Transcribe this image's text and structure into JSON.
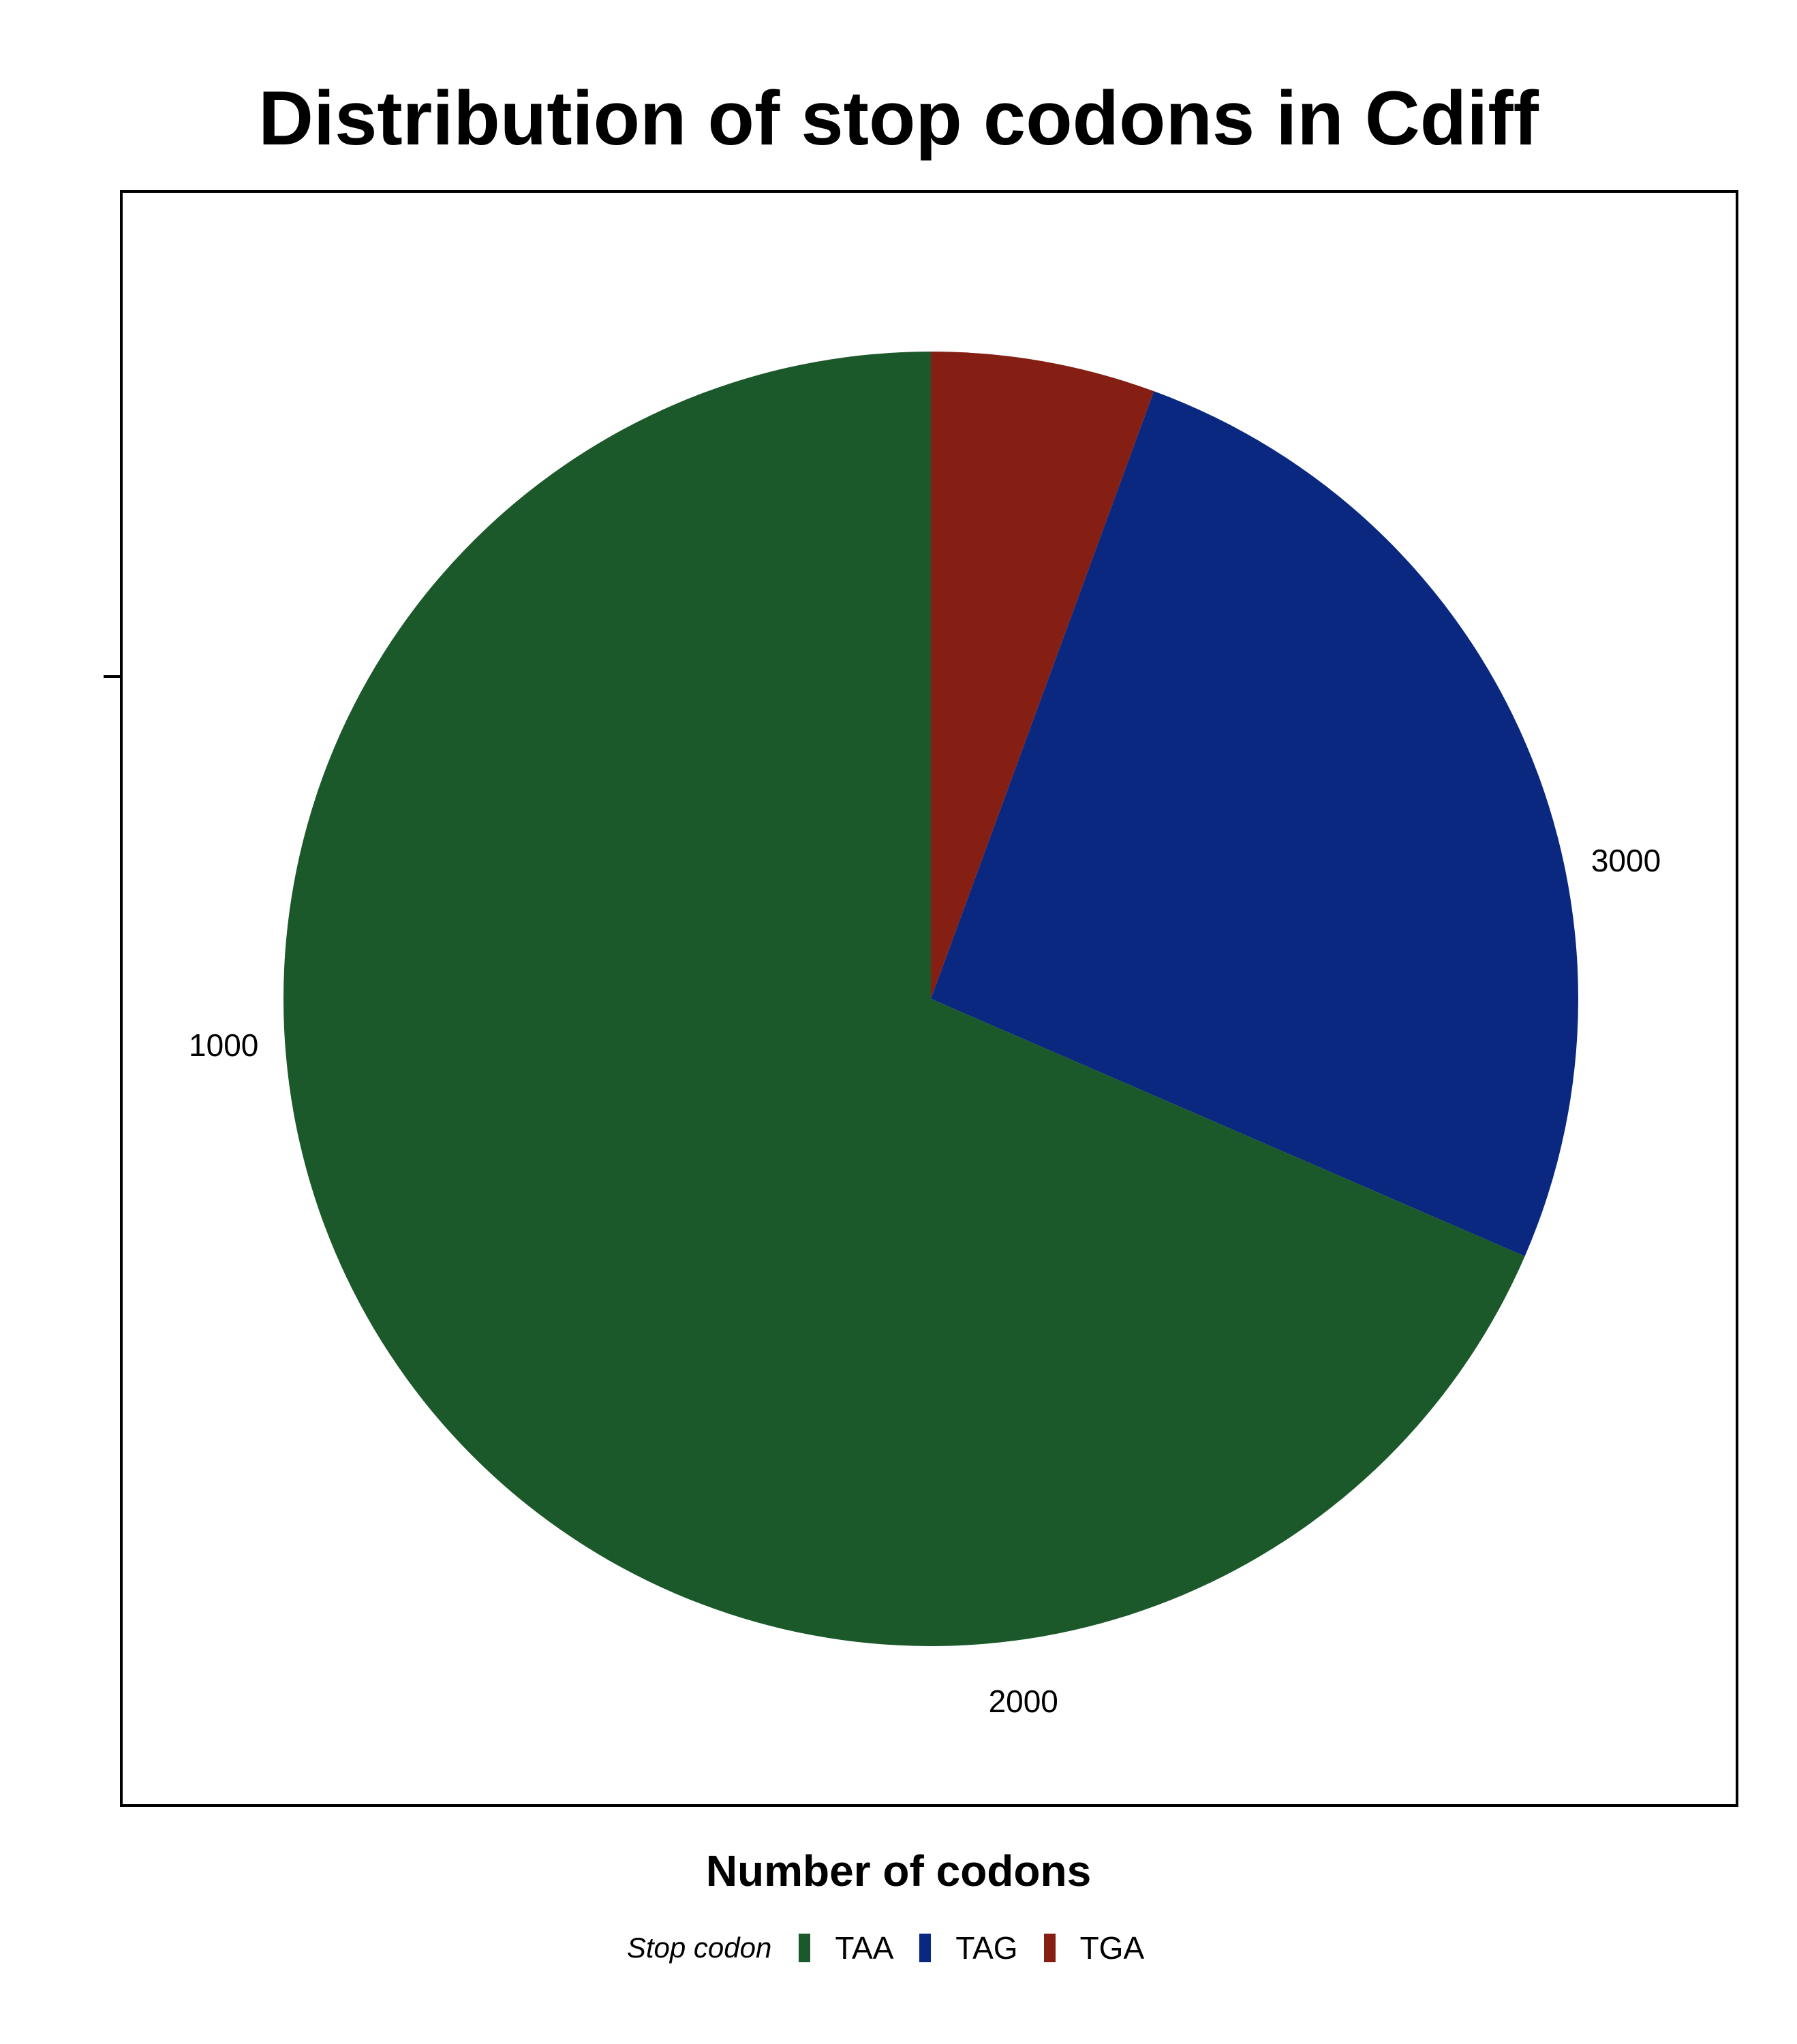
{
  "chart_data": {
    "type": "pie",
    "title": "Distribution of stop codons in Cdiff",
    "xlabel": "Number of codons",
    "ylabel": "",
    "legend_title": "Stop codon",
    "legend_position": "bottom",
    "slices": [
      {
        "label": "TAA",
        "value": 2630,
        "color": "#1b582a"
      },
      {
        "label": "TAG",
        "value": 995,
        "color": "#0a2880"
      },
      {
        "label": "TGA",
        "value": 215,
        "color": "#851f14"
      }
    ],
    "axis_ticks": [
      {
        "label": "3000",
        "value": 3000
      },
      {
        "label": "2000",
        "value": 2000
      },
      {
        "label": "1000",
        "value": 1000
      }
    ],
    "axis_range": [
      0,
      3840
    ],
    "grid": false
  }
}
